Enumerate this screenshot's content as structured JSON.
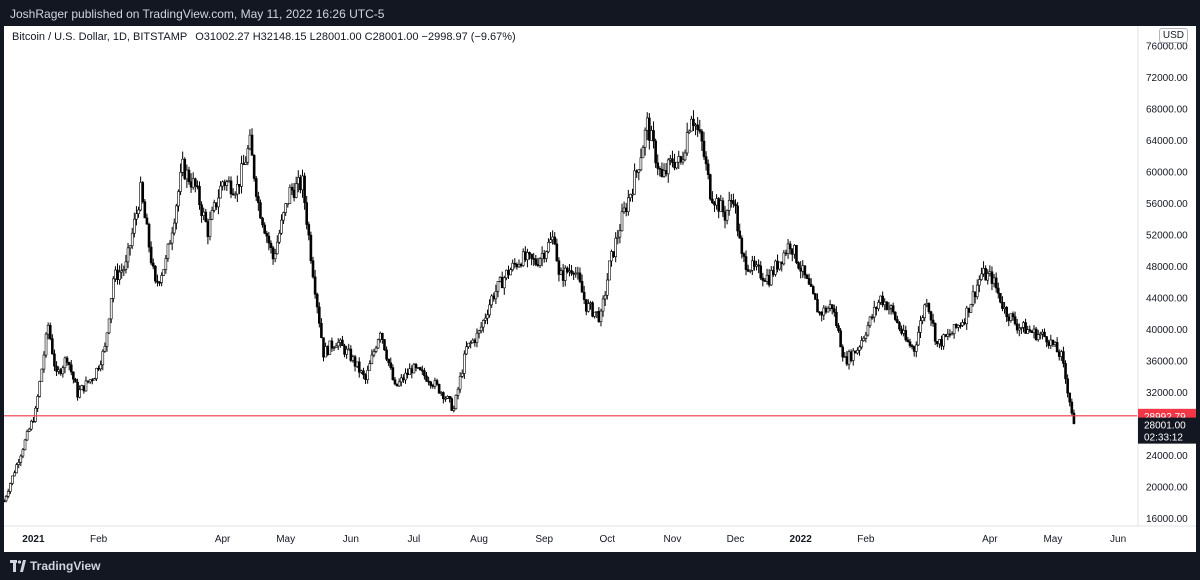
{
  "header": {
    "publisher": "JoshRager published on TradingView.com, May 11, 2022 16:26 UTC-5"
  },
  "legend": {
    "symbol": "Bitcoin / U.S. Dollar, 1D, BITSTAMP",
    "ohlc": "O31002.27  H32148.15  L28001.00  C28001.00  −2998.97 (−9.67%)"
  },
  "currency": "USD",
  "footer": {
    "brand": "TradingView"
  },
  "colors": {
    "background": "#ffffff",
    "candle": "#000000",
    "support_line": "#f23645",
    "price_badge": "#131722"
  },
  "chart_data": {
    "type": "candlestick",
    "yticks": [
      16000,
      20000,
      24000,
      28000,
      32000,
      36000,
      40000,
      44000,
      48000,
      52000,
      56000,
      60000,
      64000,
      68000,
      72000,
      76000
    ],
    "ytick_labels": [
      "16000.00",
      "20000.00",
      "24000.00",
      "28000.00",
      "32000.00",
      "36000.00",
      "40000.00",
      "44000.00",
      "48000.00",
      "52000.00",
      "56000.00",
      "60000.00",
      "64000.00",
      "68000.00",
      "72000.00",
      "76000.00"
    ],
    "ylim": [
      15000,
      78500
    ],
    "x_labels": [
      {
        "label": "2021",
        "date": "2021-01-01",
        "bold": true
      },
      {
        "label": "Feb",
        "date": "2021-02-01"
      },
      {
        "label": "Apr",
        "date": "2021-04-01"
      },
      {
        "label": "May",
        "date": "2021-05-01"
      },
      {
        "label": "Jun",
        "date": "2021-06-01"
      },
      {
        "label": "Jul",
        "date": "2021-07-01"
      },
      {
        "label": "Aug",
        "date": "2021-08-01"
      },
      {
        "label": "Sep",
        "date": "2021-09-01"
      },
      {
        "label": "Oct",
        "date": "2021-10-01"
      },
      {
        "label": "Nov",
        "date": "2021-11-01"
      },
      {
        "label": "Dec",
        "date": "2021-12-01"
      },
      {
        "label": "2022",
        "date": "2022-01-01",
        "bold": true
      },
      {
        "label": "Feb",
        "date": "2022-02-01"
      },
      {
        "label": "Apr",
        "date": "2022-04-01"
      },
      {
        "label": "May",
        "date": "2022-05-01"
      },
      {
        "label": "Jun",
        "date": "2022-06-01"
      }
    ],
    "xlim": [
      "2020-12-18",
      "2022-06-10"
    ],
    "support_line": {
      "value": 28992.79,
      "label": "28992.79"
    },
    "last_price": {
      "value": 28001.0,
      "label": "28001.00",
      "countdown": "02:33:12"
    },
    "price_path": [
      [
        "2020-12-18",
        18200
      ],
      [
        "2020-12-25",
        23500
      ],
      [
        "2021-01-02",
        29500
      ],
      [
        "2021-01-08",
        40500
      ],
      [
        "2021-01-12",
        34000
      ],
      [
        "2021-01-17",
        36500
      ],
      [
        "2021-01-22",
        31800
      ],
      [
        "2021-01-30",
        34200
      ],
      [
        "2021-02-04",
        37500
      ],
      [
        "2021-02-08",
        46500
      ],
      [
        "2021-02-14",
        48000
      ],
      [
        "2021-02-21",
        57500
      ],
      [
        "2021-02-28",
        45500
      ],
      [
        "2021-03-05",
        48500
      ],
      [
        "2021-03-13",
        60500
      ],
      [
        "2021-03-19",
        58000
      ],
      [
        "2021-03-25",
        52500
      ],
      [
        "2021-04-01",
        58800
      ],
      [
        "2021-04-08",
        58000
      ],
      [
        "2021-04-14",
        63500
      ],
      [
        "2021-04-18",
        56000
      ],
      [
        "2021-04-25",
        49000
      ],
      [
        "2021-05-03",
        57500
      ],
      [
        "2021-05-09",
        58500
      ],
      [
        "2021-05-13",
        49500
      ],
      [
        "2021-05-19",
        37000
      ],
      [
        "2021-05-25",
        38500
      ],
      [
        "2021-06-01",
        36500
      ],
      [
        "2021-06-08",
        33500
      ],
      [
        "2021-06-15",
        40000
      ],
      [
        "2021-06-22",
        32500
      ],
      [
        "2021-06-30",
        35000
      ],
      [
        "2021-07-08",
        33800
      ],
      [
        "2021-07-15",
        31800
      ],
      [
        "2021-07-20",
        29800
      ],
      [
        "2021-07-26",
        37500
      ],
      [
        "2021-08-01",
        39500
      ],
      [
        "2021-08-07",
        44000
      ],
      [
        "2021-08-14",
        47000
      ],
      [
        "2021-08-21",
        49000
      ],
      [
        "2021-08-28",
        48500
      ],
      [
        "2021-09-06",
        51800
      ],
      [
        "2021-09-08",
        46500
      ],
      [
        "2021-09-15",
        48000
      ],
      [
        "2021-09-21",
        43000
      ],
      [
        "2021-09-28",
        41500
      ],
      [
        "2021-10-02",
        48000
      ],
      [
        "2021-10-08",
        54000
      ],
      [
        "2021-10-15",
        60000
      ],
      [
        "2021-10-20",
        66000
      ],
      [
        "2021-10-27",
        59000
      ],
      [
        "2021-11-01",
        61500
      ],
      [
        "2021-11-05",
        61000
      ],
      [
        "2021-11-10",
        67500
      ],
      [
        "2021-11-15",
        63500
      ],
      [
        "2021-11-19",
        57500
      ],
      [
        "2021-11-26",
        54500
      ],
      [
        "2021-11-30",
        57000
      ],
      [
        "2021-12-04",
        49000
      ],
      [
        "2021-12-10",
        47500
      ],
      [
        "2021-12-17",
        46500
      ],
      [
        "2021-12-27",
        51000
      ],
      [
        "2022-01-03",
        46500
      ],
      [
        "2022-01-10",
        42000
      ],
      [
        "2022-01-16",
        43000
      ],
      [
        "2022-01-22",
        36000
      ],
      [
        "2022-01-28",
        37500
      ],
      [
        "2022-02-08",
        44000
      ],
      [
        "2022-02-13",
        42500
      ],
      [
        "2022-02-20",
        38500
      ],
      [
        "2022-02-24",
        37500
      ],
      [
        "2022-03-02",
        44000
      ],
      [
        "2022-03-07",
        38000
      ],
      [
        "2022-03-14",
        39500
      ],
      [
        "2022-03-20",
        41500
      ],
      [
        "2022-03-28",
        47000
      ],
      [
        "2022-04-02",
        46500
      ],
      [
        "2022-04-08",
        42500
      ],
      [
        "2022-04-14",
        40500
      ],
      [
        "2022-04-22",
        39500
      ],
      [
        "2022-04-28",
        39000
      ],
      [
        "2022-05-05",
        36500
      ],
      [
        "2022-05-09",
        31000
      ],
      [
        "2022-05-11",
        28001
      ]
    ]
  }
}
